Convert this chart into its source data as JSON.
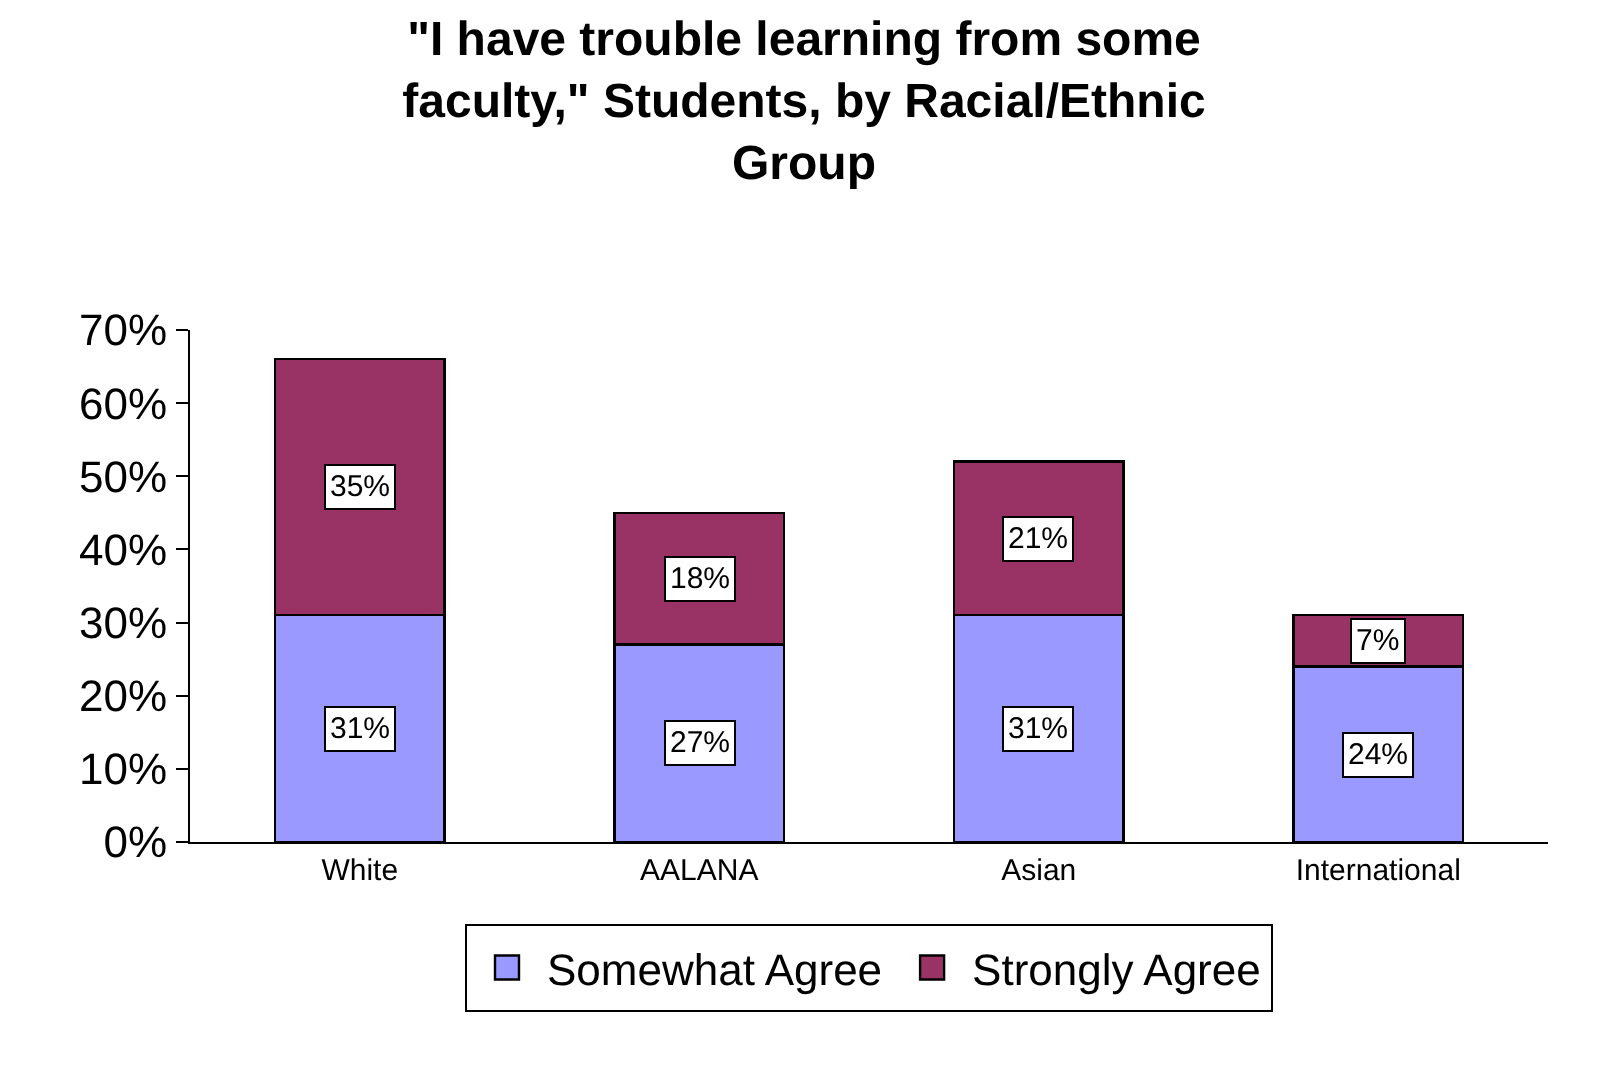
{
  "chart_data": {
    "type": "bar",
    "title": "\"I have trouble learning from some faculty,\" Students, by Racial/Ethnic Group",
    "categories": [
      "White",
      "AALANA",
      "Asian",
      "International"
    ],
    "stacked": true,
    "series": [
      {
        "name": "Somewhat Agree",
        "color": "#9999ff",
        "values": [
          31,
          27,
          31,
          24
        ],
        "value_labels": [
          "31%",
          "27%",
          "31%",
          "24%"
        ]
      },
      {
        "name": "Strongly Agree",
        "color": "#993366",
        "values": [
          35,
          18,
          21,
          7
        ],
        "value_labels": [
          "35%",
          "18%",
          "21%",
          "7%"
        ]
      }
    ],
    "ylim": [
      0,
      70
    ],
    "yticks": [
      {
        "value": 0,
        "label": "0%"
      },
      {
        "value": 10,
        "label": "10%"
      },
      {
        "value": 20,
        "label": "20%"
      },
      {
        "value": 30,
        "label": "30%"
      },
      {
        "value": 40,
        "label": "40%"
      },
      {
        "value": 50,
        "label": "50%"
      },
      {
        "value": 60,
        "label": "60%"
      },
      {
        "value": 70,
        "label": "70%"
      }
    ],
    "grid": false,
    "legend": "bottom"
  }
}
